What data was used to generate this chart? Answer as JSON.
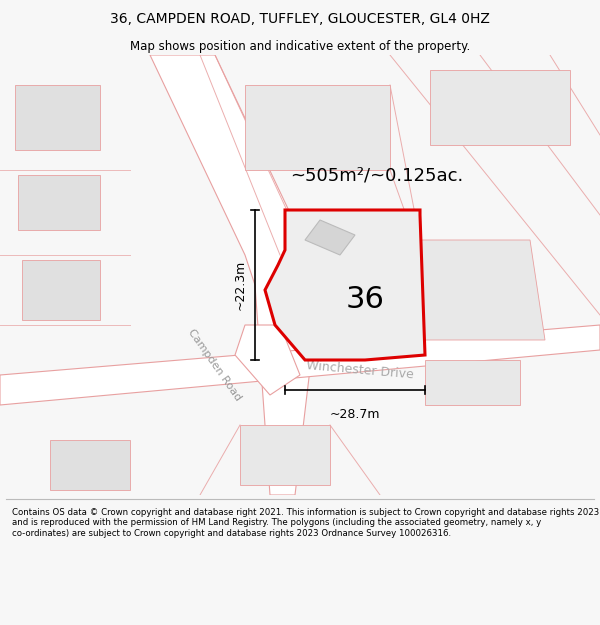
{
  "title_line1": "36, CAMPDEN ROAD, TUFFLEY, GLOUCESTER, GL4 0HZ",
  "title_line2": "Map shows position and indicative extent of the property.",
  "footer_text": "Contains OS data © Crown copyright and database right 2021. This information is subject to Crown copyright and database rights 2023 and is reproduced with the permission of HM Land Registry. The polygons (including the associated geometry, namely x, y co-ordinates) are subject to Crown copyright and database rights 2023 Ordnance Survey 100026316.",
  "bg_color": "#f7f7f7",
  "map_bg": "#f2f1f0",
  "road_fill": "#ffffff",
  "road_stroke": "#e8a0a0",
  "block_fill": "#e0e0e0",
  "block_stroke": "#e8a0a0",
  "highlight_fill": "#eeeeee",
  "highlight_stroke": "#dd0000",
  "highlight_lw": 2.2,
  "area_label": "~505m²/~0.125ac.",
  "number_label": "36",
  "dim_h_label": "~22.3m",
  "dim_w_label": "~28.7m",
  "street_label1": "Campden Road",
  "street_label2": "Winchester Drive"
}
